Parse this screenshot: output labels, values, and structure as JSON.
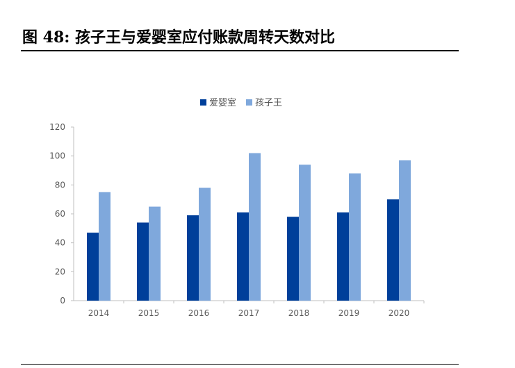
{
  "figure": {
    "title": "图  48:  孩子王与爱婴室应付账款周转天数对比"
  },
  "chart_data": {
    "type": "bar",
    "categories": [
      "2014",
      "2015",
      "2016",
      "2017",
      "2018",
      "2019",
      "2020"
    ],
    "series": [
      {
        "name": "爱婴室",
        "color": "#003f9a",
        "values": [
          47,
          54,
          59,
          61,
          58,
          61,
          70
        ]
      },
      {
        "name": "孩子王",
        "color": "#7fa8dc",
        "values": [
          75,
          65,
          78,
          102,
          94,
          88,
          97
        ]
      }
    ],
    "ylim": [
      0,
      120
    ],
    "yticks": [
      0,
      20,
      40,
      60,
      80,
      100,
      120
    ],
    "legend_position": "top-center",
    "grid": false,
    "xlabel": "",
    "ylabel": ""
  }
}
